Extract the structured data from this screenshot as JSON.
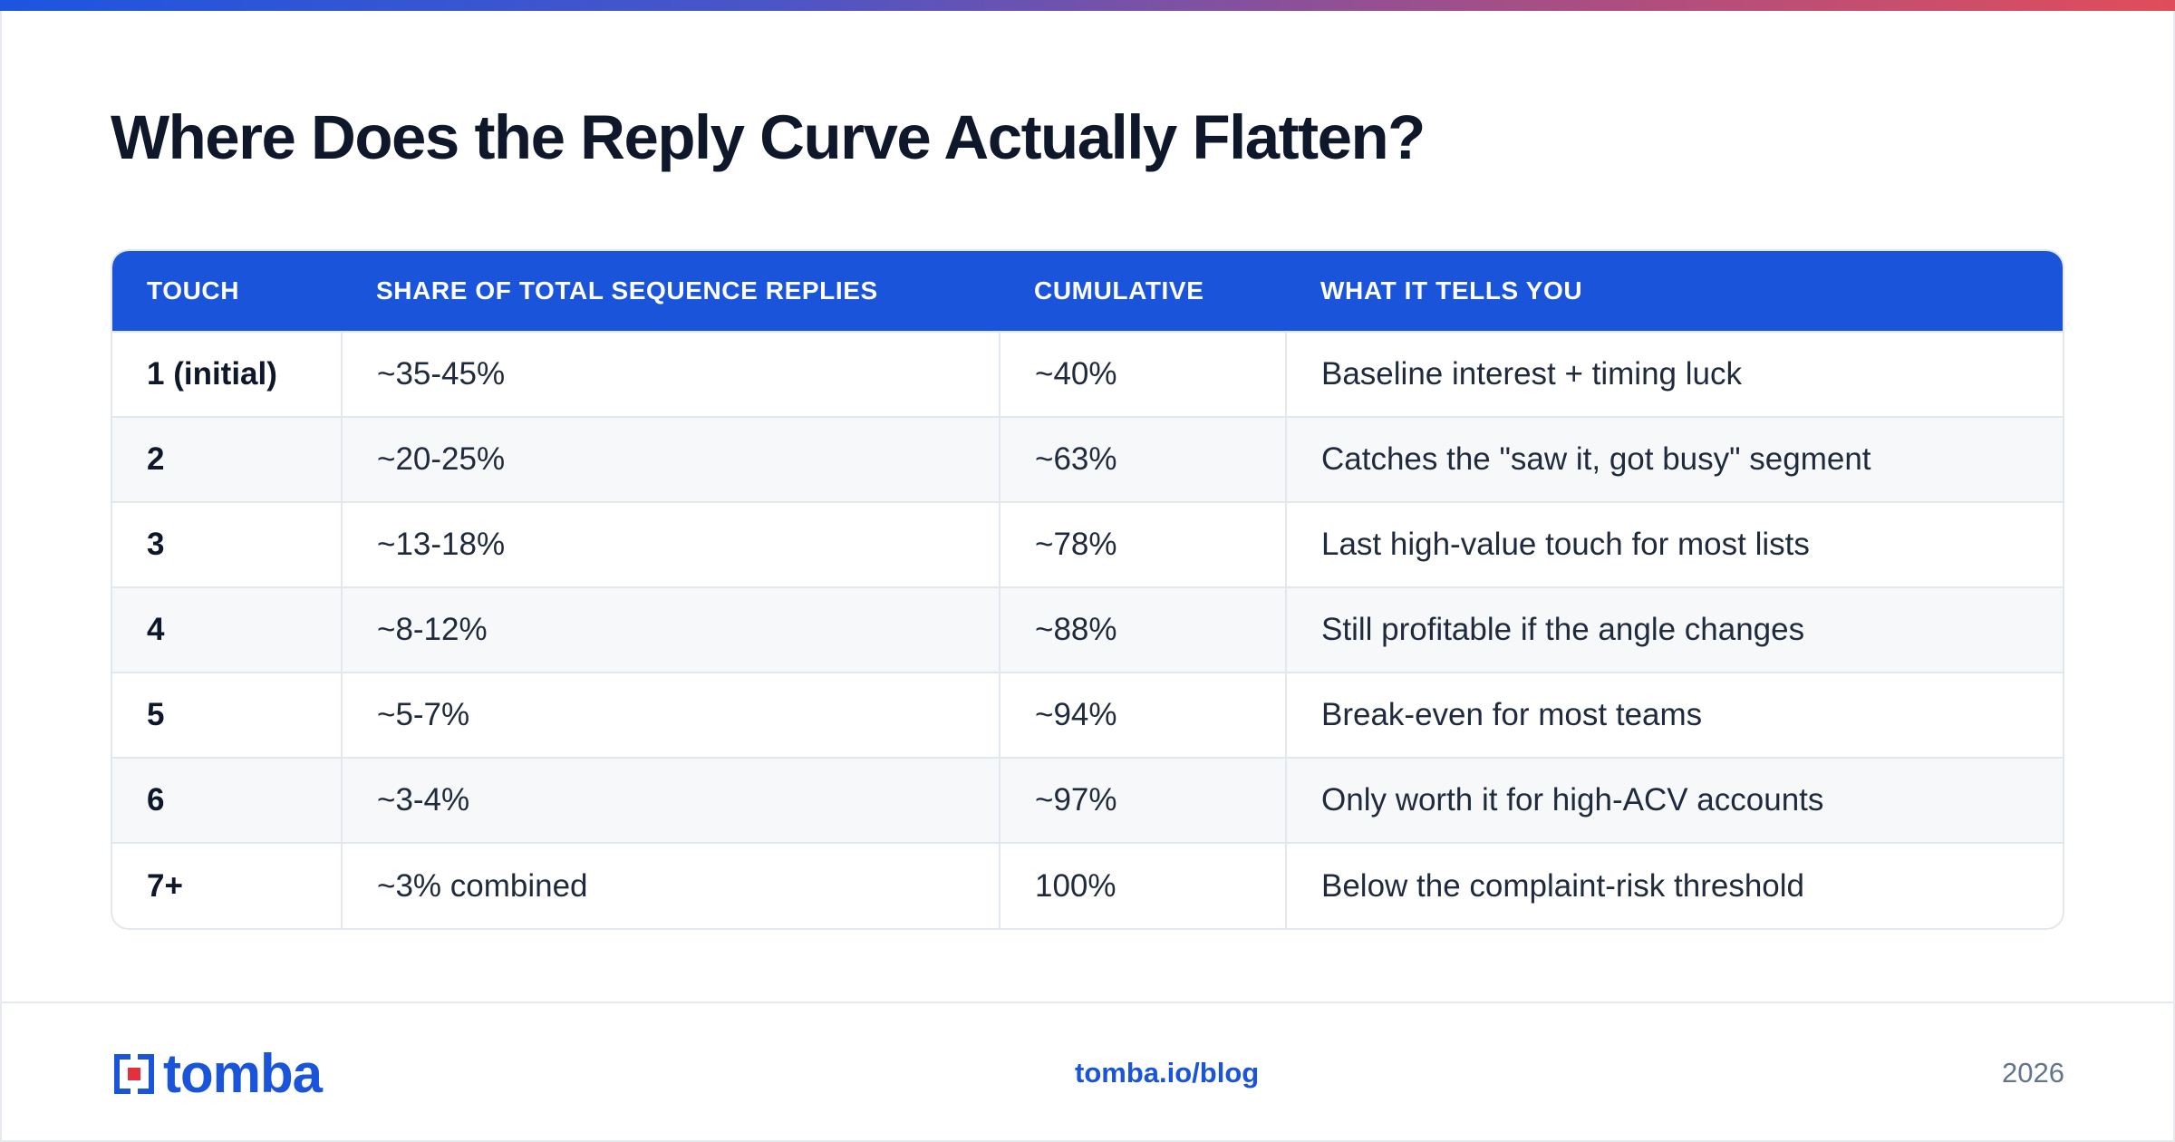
{
  "title": "Where Does the Reply Curve Actually Flatten?",
  "table": {
    "headers": [
      "TOUCH",
      "SHARE OF TOTAL SEQUENCE REPLIES",
      "CUMULATIVE",
      "WHAT IT TELLS YOU"
    ],
    "rows": [
      {
        "touch": "1 (initial)",
        "share": "~35-45%",
        "cumulative": "~40%",
        "meaning": "Baseline interest + timing luck"
      },
      {
        "touch": "2",
        "share": "~20-25%",
        "cumulative": "~63%",
        "meaning": "Catches the \"saw it, got busy\" segment"
      },
      {
        "touch": "3",
        "share": "~13-18%",
        "cumulative": "~78%",
        "meaning": "Last high-value touch for most lists"
      },
      {
        "touch": "4",
        "share": "~8-12%",
        "cumulative": "~88%",
        "meaning": "Still profitable if the angle changes"
      },
      {
        "touch": "5",
        "share": "~5-7%",
        "cumulative": "~94%",
        "meaning": "Break-even for most teams"
      },
      {
        "touch": "6",
        "share": "~3-4%",
        "cumulative": "~97%",
        "meaning": "Only worth it for high-ACV accounts"
      },
      {
        "touch": "7+",
        "share": "~3% combined",
        "cumulative": "100%",
        "meaning": "Below the complaint-risk threshold"
      }
    ]
  },
  "footer": {
    "logo_text": "tomba",
    "link": "tomba.io/blog",
    "year": "2026"
  },
  "colors": {
    "accent": "#1a54da",
    "gradient_start": "#1d55e0",
    "gradient_end": "#e14d5a",
    "logo_red": "#e3303c"
  },
  "icons": {
    "logo_mark": "tomba-logo-icon"
  }
}
